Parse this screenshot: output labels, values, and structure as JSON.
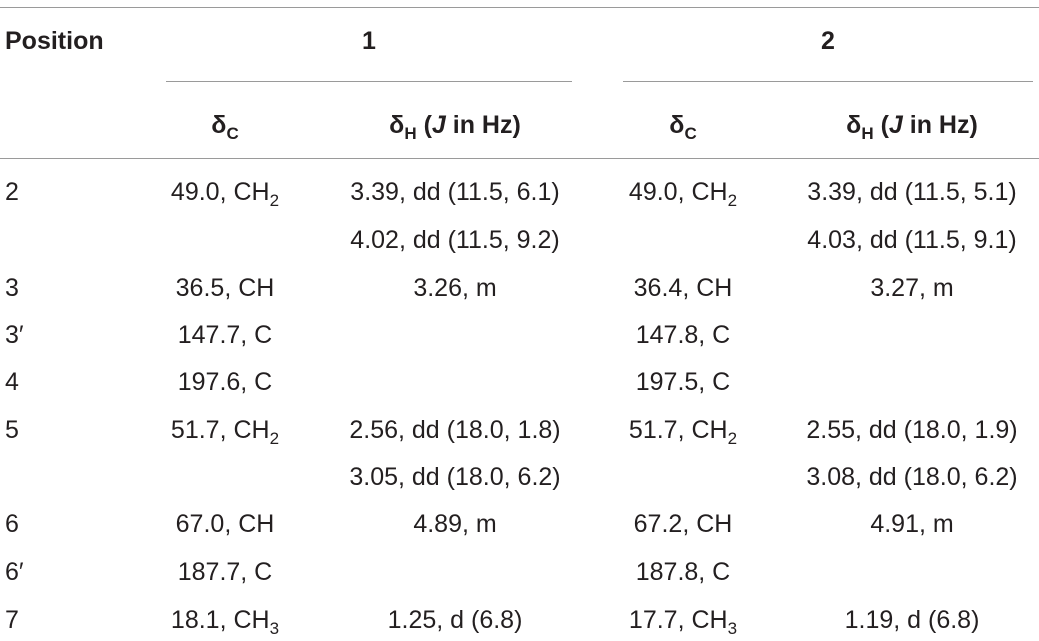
{
  "header": {
    "position_label": "Position",
    "compound_1": "1",
    "compound_2": "2",
    "delta_c_base": "δ",
    "delta_c_sub": "C",
    "delta_h_base": "δ",
    "delta_h_sub": "H",
    "j_open": "(",
    "j_symbol": "J",
    "j_rest": " in Hz)"
  },
  "rows": [
    {
      "position": "2",
      "c1": "49.0, CH",
      "c1_sub": "2",
      "h1": "3.39, dd (11.5, 6.1)",
      "c2": "49.0, CH",
      "c2_sub": "2",
      "h2": "3.39, dd (11.5, 5.1)"
    },
    {
      "position": "",
      "c1": "",
      "c1_sub": "",
      "h1": "4.02, dd (11.5, 9.2)",
      "c2": "",
      "c2_sub": "",
      "h2": "4.03, dd (11.5, 9.1)"
    },
    {
      "position": "3",
      "c1": "36.5, CH",
      "c1_sub": "",
      "h1": "3.26, m",
      "c2": "36.4, CH",
      "c2_sub": "",
      "h2": "3.27, m"
    },
    {
      "position": "3′",
      "c1": "147.7, C",
      "c1_sub": "",
      "h1": "",
      "c2": "147.8, C",
      "c2_sub": "",
      "h2": ""
    },
    {
      "position": "4",
      "c1": "197.6, C",
      "c1_sub": "",
      "h1": "",
      "c2": "197.5, C",
      "c2_sub": "",
      "h2": ""
    },
    {
      "position": "5",
      "c1": "51.7, CH",
      "c1_sub": "2",
      "h1": "2.56, dd (18.0, 1.8)",
      "c2": "51.7, CH",
      "c2_sub": "2",
      "h2": "2.55, dd (18.0, 1.9)"
    },
    {
      "position": "",
      "c1": "",
      "c1_sub": "",
      "h1": "3.05, dd (18.0, 6.2)",
      "c2": "",
      "c2_sub": "",
      "h2": "3.08, dd (18.0, 6.2)"
    },
    {
      "position": "6",
      "c1": "67.0, CH",
      "c1_sub": "",
      "h1": "4.89, m",
      "c2": "67.2, CH",
      "c2_sub": "",
      "h2": "4.91, m"
    },
    {
      "position": "6′",
      "c1": "187.7, C",
      "c1_sub": "",
      "h1": "",
      "c2": "187.8, C",
      "c2_sub": "",
      "h2": ""
    },
    {
      "position": "7",
      "c1": "18.1, CH",
      "c1_sub": "3",
      "h1": "1.25, d (6.8)",
      "c2": "17.7, CH",
      "c2_sub": "3",
      "h2": "1.19, d (6.8)"
    }
  ]
}
